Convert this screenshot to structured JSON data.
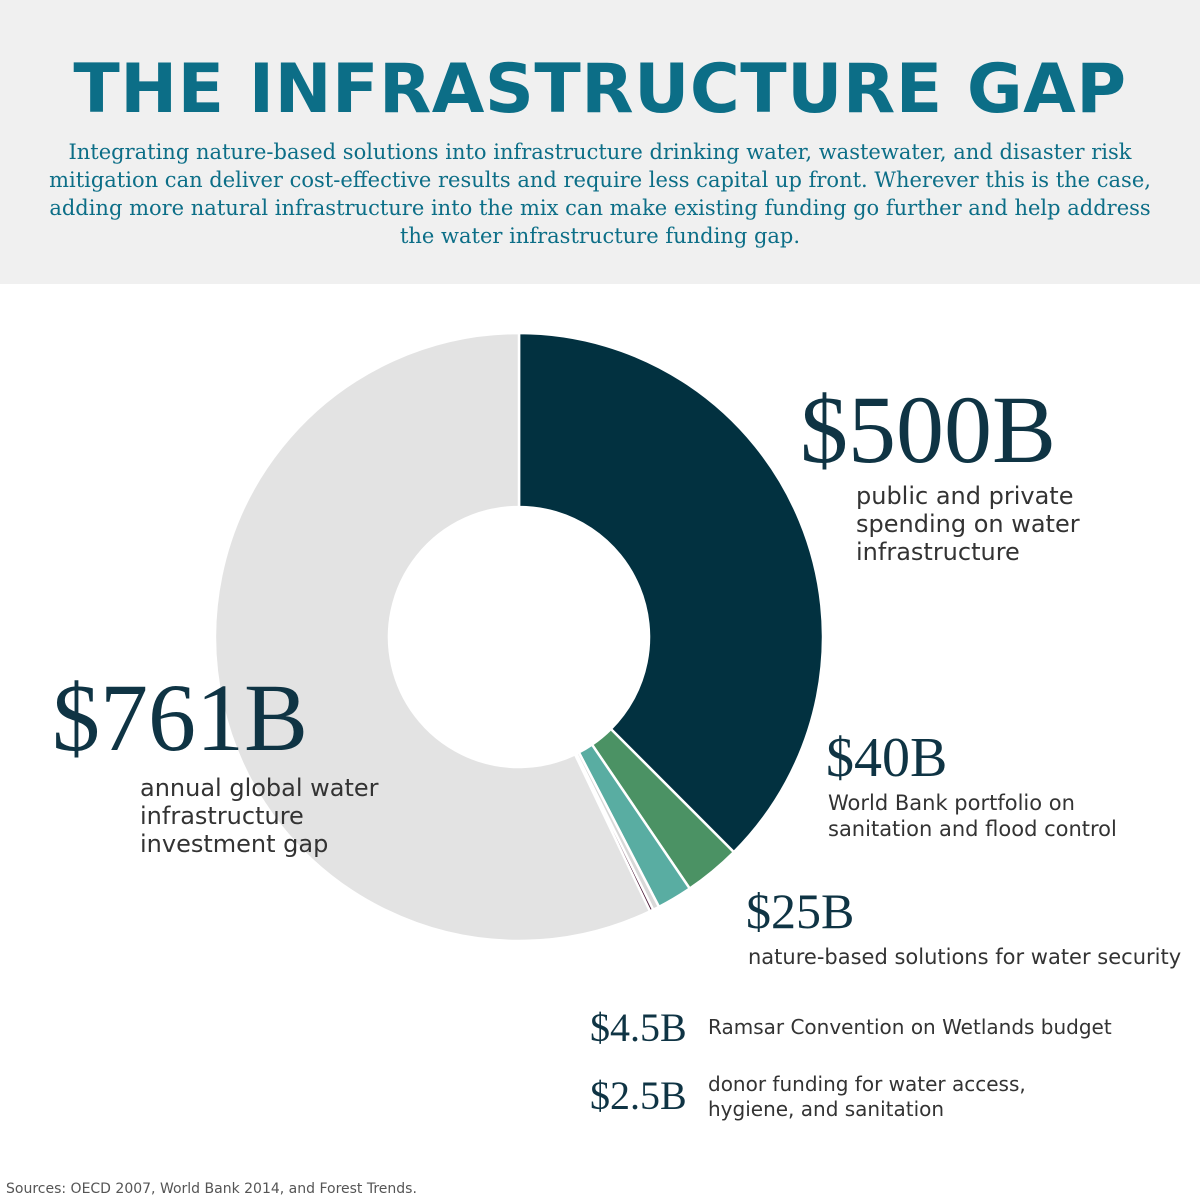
{
  "header": {
    "title": "THE INFRASTRUCTURE GAP",
    "subtitle": "Integrating nature-based solutions into infrastructure drinking water, wastewater, and disaster risk mitigation can deliver cost-effective results and require less capital up front. Wherever this is the case, adding more natural infrastructure into the mix can make existing funding go further and help address the water infrastructure funding gap."
  },
  "chart_data": {
    "type": "pie",
    "variant": "donut",
    "start": "top (12 o'clock), clockwise",
    "slices": [
      {
        "key": "s500",
        "amount": "$500B",
        "label": "public and private spending on water infrastructure",
        "value": 500,
        "color": "#023140"
      },
      {
        "key": "s40",
        "amount": "$40B",
        "label": "World Bank portfolio on sanitation and flood control",
        "value": 40,
        "color": "#4b9264"
      },
      {
        "key": "s25",
        "amount": "$25B",
        "label": "nature-based solutions for water security",
        "value": 25,
        "color": "#59ada2"
      },
      {
        "key": "s45",
        "amount": "$4.5B",
        "label": "Ramsar Convention on Wetlands budget",
        "value": 4.5,
        "color": "#d8d8d8"
      },
      {
        "key": "s25b",
        "amount": "$2.5B",
        "label": "donor funding for water access, hygiene, and sanitation",
        "value": 2.5,
        "color": "#4a1836"
      },
      {
        "key": "s761",
        "amount": "$761B",
        "label": "annual global water infrastructure investment gap",
        "value": 761,
        "color": "#e3e3e3"
      }
    ]
  },
  "footer": {
    "source": "Sources: OECD 2007, World Bank 2014, and Forest Trends."
  }
}
